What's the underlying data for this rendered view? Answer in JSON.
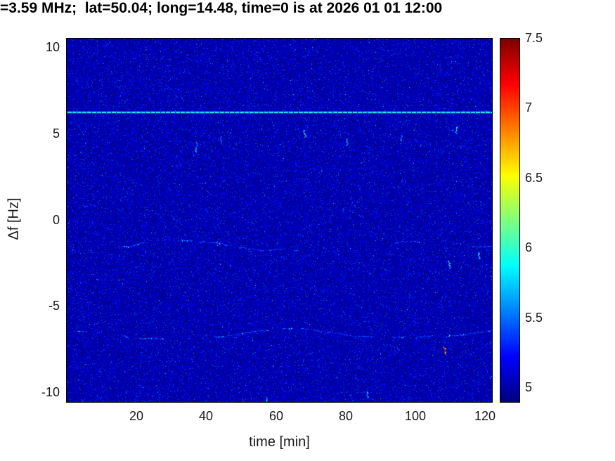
{
  "figure": {
    "title": "=3.59 MHz;  lat=50.04; long=14.48, time=0 is at 2026 01 01 12:00"
  },
  "chart_data": {
    "type": "heatmap",
    "title": "=3.59 MHz;  lat=50.04; long=14.48, time=0 is at 2026 01 01 12:00",
    "xlabel": "time [min]",
    "ylabel": "Δf [Hz]",
    "xlim": [
      0,
      122
    ],
    "ylim": [
      -10.55,
      10.55
    ],
    "xticks": [
      20,
      40,
      60,
      80,
      100,
      120
    ],
    "yticks": [
      10,
      5,
      0,
      -5,
      -10
    ],
    "colormap": "jet",
    "clim": [
      4.9,
      7.5
    ],
    "colorbar_ticks": [
      5,
      5.5,
      6,
      6.5,
      7,
      7.5
    ],
    "colorbar_position": "right",
    "grid": false,
    "background_value": 4.95,
    "noise_description": "dark blue background with sparse brighter blue speckle noise and rare cyan dots",
    "features": [
      {
        "kind": "horizontal-line",
        "label": "strong carrier line",
        "freq": 6.25,
        "t_start": 0,
        "t_end": 122,
        "value": 5.95,
        "dashed": true
      },
      {
        "kind": "wavy-trace",
        "label": "doppler trace",
        "freq": -1.5,
        "t_start": 0,
        "t_end": 122,
        "value": 5.5,
        "amplitude_hz": 0.25,
        "continuity_start": 0.3,
        "continuity_end": 0.8
      },
      {
        "kind": "wavy-trace",
        "label": "doppler trace",
        "freq": -6.6,
        "t_start": 0,
        "t_end": 122,
        "value": 5.5,
        "amplitude_hz": 0.25,
        "continuity_start": 0.5,
        "continuity_end": 0.75
      },
      {
        "kind": "blob",
        "label": "artifact",
        "t": 37,
        "freq": 4.6,
        "value": 5.8
      },
      {
        "kind": "blob",
        "label": "artifact",
        "t": 44,
        "freq": 4.9,
        "value": 5.6
      },
      {
        "kind": "blob",
        "label": "artifact",
        "t": 68,
        "freq": 5.3,
        "value": 6.1
      },
      {
        "kind": "blob",
        "label": "artifact",
        "t": 80,
        "freq": 4.8,
        "value": 5.8
      },
      {
        "kind": "blob",
        "label": "artifact",
        "t": 96,
        "freq": 5.0,
        "value": 5.7
      },
      {
        "kind": "blob",
        "label": "artifact",
        "t": 112,
        "freq": 5.5,
        "value": 5.9
      },
      {
        "kind": "blob",
        "label": "artifact",
        "t": 109,
        "freq": -2.3,
        "value": 6.0
      },
      {
        "kind": "blob",
        "label": "bright artifact",
        "t": 108,
        "freq": -7.3,
        "value": 6.9
      },
      {
        "kind": "blob",
        "label": "artifact",
        "t": 118,
        "freq": -1.8,
        "value": 6.0
      },
      {
        "kind": "blob",
        "label": "artifact",
        "t": 57,
        "freq": -10.2,
        "value": 5.8
      },
      {
        "kind": "blob",
        "label": "artifact",
        "t": 86,
        "freq": -9.9,
        "value": 5.7
      }
    ]
  }
}
